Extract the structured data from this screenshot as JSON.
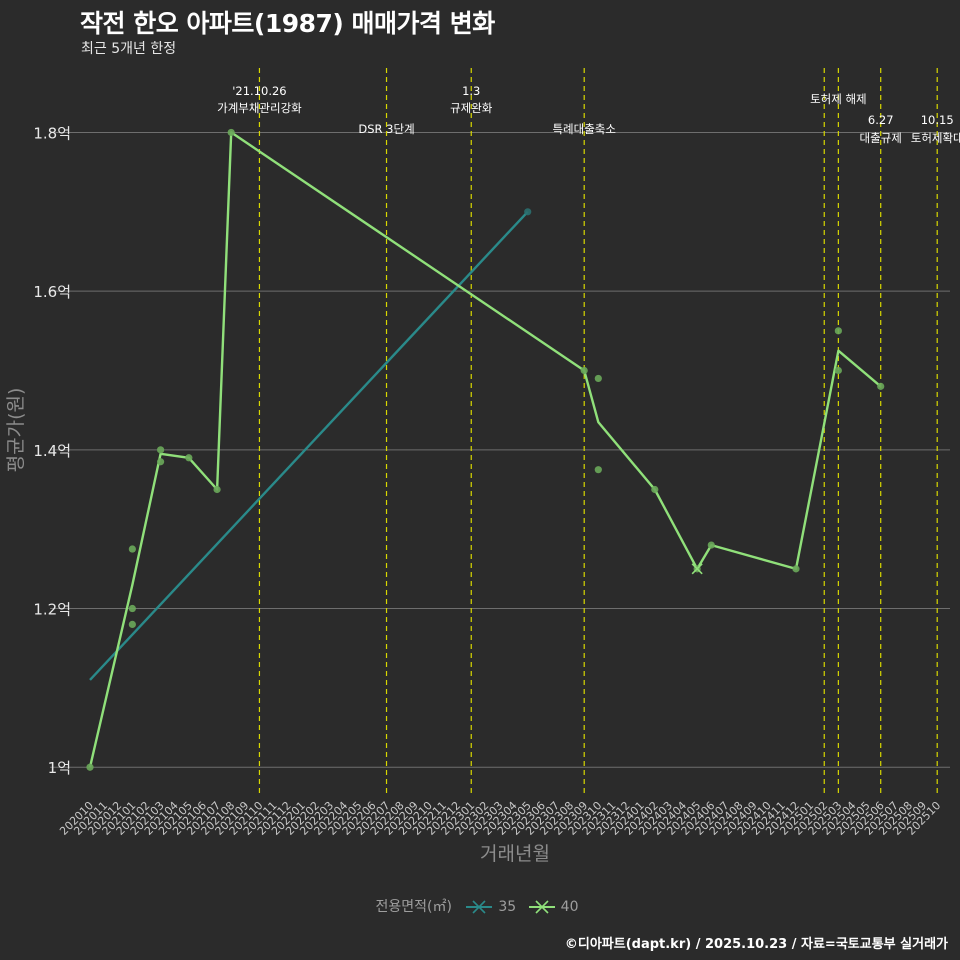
{
  "header": {
    "title": "작전 한오 아파트(1987) 매매가격 변화",
    "subtitle": "최근 5개년 한정"
  },
  "legend": {
    "title": "전용면적(㎡)",
    "items": [
      {
        "label": "35",
        "color": "#2a8a8a"
      },
      {
        "label": "40",
        "color": "#90e07a"
      }
    ]
  },
  "caption": "©디아파트(dapt.kr) / 2025.10.23 / 자료=국토교통부 실거래가",
  "colors": {
    "background": "#2b2b2b",
    "grid": "#6e6e6e",
    "event_line": "#d8d800",
    "series_35": "#2a8a8a",
    "series_40": "#90e07a",
    "points_40": "#6aa85a",
    "points_35": "#2b6f6f"
  },
  "chart_data": {
    "type": "line",
    "title": "작전 한오 아파트(1987) 매매가격 변화",
    "subtitle": "최근 5개년 한정",
    "xlabel": "거래년월",
    "ylabel": "평균가(원)",
    "ylim": [
      0.965,
      1.885
    ],
    "x_ticks": [
      "202010",
      "202011",
      "202012",
      "202101",
      "202102",
      "202103",
      "202104",
      "202105",
      "202106",
      "202107",
      "202108",
      "202109",
      "202110",
      "202111",
      "202112",
      "202201",
      "202202",
      "202203",
      "202204",
      "202205",
      "202206",
      "202207",
      "202208",
      "202209",
      "202210",
      "202211",
      "202212",
      "202301",
      "202302",
      "202303",
      "202304",
      "202305",
      "202306",
      "202307",
      "202308",
      "202309",
      "202310",
      "202311",
      "202312",
      "202401",
      "202402",
      "202403",
      "202404",
      "202405",
      "202406",
      "202407",
      "202408",
      "202409",
      "202410",
      "202411",
      "202412",
      "202501",
      "202502",
      "202503",
      "202504",
      "202505",
      "202506",
      "202507",
      "202508",
      "202509",
      "202510"
    ],
    "y_ticks": [
      {
        "value": 1.0,
        "label": "1억"
      },
      {
        "value": 1.2,
        "label": "1.2억"
      },
      {
        "value": 1.4,
        "label": "1.4억"
      },
      {
        "value": 1.6,
        "label": "1.6억"
      },
      {
        "value": 1.8,
        "label": "1.8억"
      }
    ],
    "events": [
      {
        "x": 12,
        "lines": [
          "'21.10.26",
          "가계부채관리강화"
        ],
        "level": 1
      },
      {
        "x": 21,
        "lines": [
          "DSR 3단계"
        ],
        "level": 3
      },
      {
        "x": 27,
        "lines": [
          "1.3",
          "규제완화"
        ],
        "level": 1
      },
      {
        "x": 35,
        "lines": [
          "특례대출축소"
        ],
        "level": 3
      },
      {
        "x": 52,
        "lines": [],
        "level": 0
      },
      {
        "x": 53,
        "lines": [
          "토허제 해제"
        ],
        "level": 2
      },
      {
        "x": 56,
        "lines": [
          "6.27",
          "대출규제"
        ],
        "level": 4
      },
      {
        "x": 60,
        "lines": [
          "10.15",
          "토허제확대"
        ],
        "level": 4
      }
    ],
    "series": [
      {
        "name": "35",
        "line": [
          [
            0,
            1.11
          ],
          [
            31,
            1.7
          ]
        ],
        "points": [
          [
            31,
            1.7
          ]
        ],
        "x_markers": []
      },
      {
        "name": "40",
        "line": [
          [
            0,
            1.0
          ],
          [
            3,
            1.23
          ],
          [
            5,
            1.395
          ],
          [
            7,
            1.39
          ],
          [
            9,
            1.35
          ],
          [
            10,
            1.8
          ],
          [
            35,
            1.5
          ],
          [
            36,
            1.435
          ],
          [
            40,
            1.35
          ],
          [
            43,
            1.25
          ],
          [
            44,
            1.28
          ],
          [
            50,
            1.25
          ],
          [
            53,
            1.525
          ],
          [
            56,
            1.48
          ]
        ],
        "points": [
          [
            0,
            1.0
          ],
          [
            3,
            1.275
          ],
          [
            3,
            1.2
          ],
          [
            3,
            1.18
          ],
          [
            5,
            1.4
          ],
          [
            5,
            1.385
          ],
          [
            7,
            1.39
          ],
          [
            9,
            1.35
          ],
          [
            10,
            1.8
          ],
          [
            35,
            1.5
          ],
          [
            36,
            1.49
          ],
          [
            36,
            1.375
          ],
          [
            40,
            1.35
          ],
          [
            43,
            1.25
          ],
          [
            44,
            1.28
          ],
          [
            50,
            1.25
          ],
          [
            53,
            1.55
          ],
          [
            53,
            1.5
          ],
          [
            56,
            1.48
          ]
        ],
        "x_markers": [
          [
            43,
            1.25
          ]
        ]
      }
    ]
  }
}
